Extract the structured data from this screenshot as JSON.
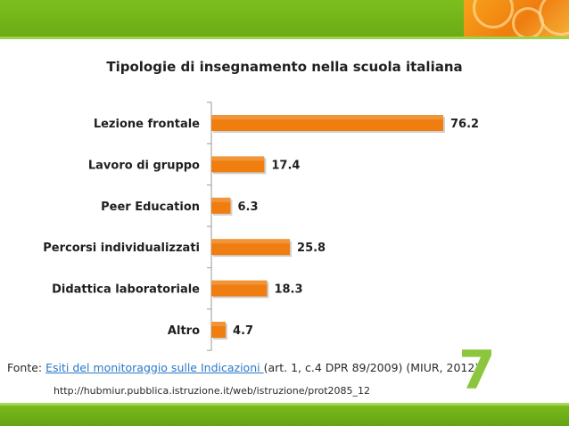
{
  "chart_data": {
    "type": "bar",
    "orientation": "horizontal",
    "title": "Tipologie di insegnamento nella scuola italiana",
    "categories": [
      "Lezione frontale",
      "Lavoro di gruppo",
      "Peer Education",
      "Percorsi individualizzati",
      "Didattica laboratoriale",
      "Altro"
    ],
    "values": [
      76.2,
      17.4,
      6.3,
      25.8,
      18.3,
      4.7
    ],
    "value_labels": [
      "76.2",
      "17.4",
      "6.3",
      "25.8",
      "18.3",
      "4.7"
    ],
    "xlim": [
      0,
      80
    ],
    "grid": false,
    "bar_color": "#ef7d0f"
  },
  "footer": {
    "source_prefix": "Fonte: ",
    "source_link": "Esiti del monitoraggio sulle Indicazioni ",
    "source_suffix": "(art. 1, c.4 DPR 89/2009) (MIUR, 2012)",
    "url": "http://hubmiur.pubblica.istruzione.it/web/istruzione/prot2085_12"
  },
  "slide": {
    "number": "7"
  },
  "theme": {
    "band_color": "#7dbe1e",
    "accent_orange": "#f29a1a",
    "number_color": "#8cc63f"
  }
}
